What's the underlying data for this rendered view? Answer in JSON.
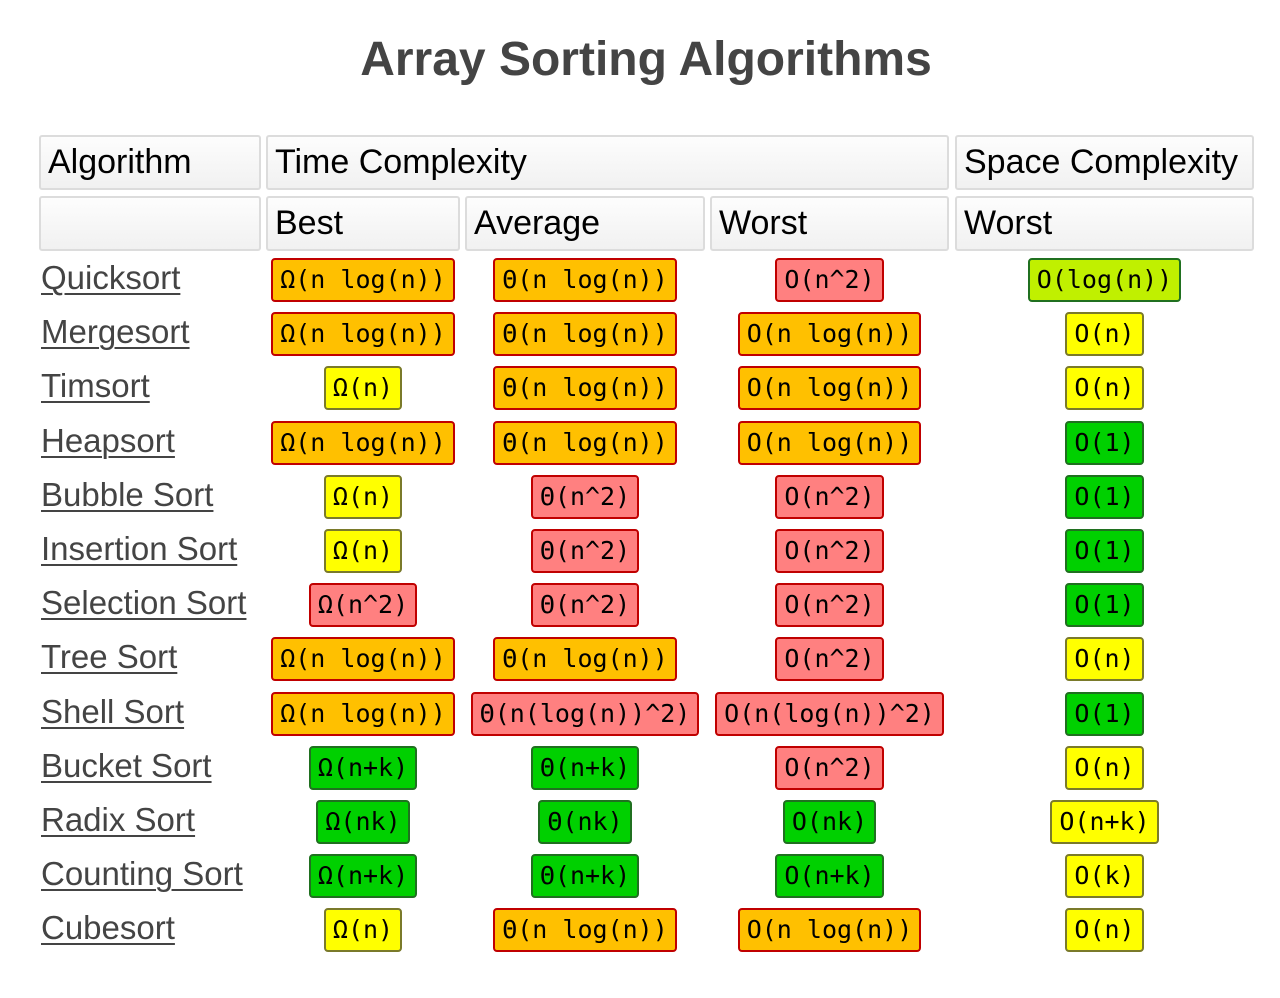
{
  "title": "Array Sorting Algorithms",
  "headers": {
    "algorithm": "Algorithm",
    "time_complexity": "Time Complexity",
    "space_complexity": "Space Complexity",
    "best": "Best",
    "average": "Average",
    "worst": "Worst",
    "space_worst": "Worst"
  },
  "colors": {
    "orange": "#ffc000",
    "red": "#ff8080",
    "yellow": "#ffff00",
    "green": "#00d000",
    "lime": "#c0f000"
  },
  "rows": [
    {
      "name": "Quicksort",
      "best": {
        "v": "Ω(n log(n))",
        "c": "orange"
      },
      "avg": {
        "v": "Θ(n log(n))",
        "c": "orange"
      },
      "worst": {
        "v": "O(n^2)",
        "c": "red"
      },
      "space": {
        "v": "O(log(n))",
        "c": "lime"
      }
    },
    {
      "name": "Mergesort",
      "best": {
        "v": "Ω(n log(n))",
        "c": "orange"
      },
      "avg": {
        "v": "Θ(n log(n))",
        "c": "orange"
      },
      "worst": {
        "v": "O(n log(n))",
        "c": "orange"
      },
      "space": {
        "v": "O(n)",
        "c": "yellow"
      }
    },
    {
      "name": "Timsort",
      "best": {
        "v": "Ω(n)",
        "c": "yellow"
      },
      "avg": {
        "v": "Θ(n log(n))",
        "c": "orange"
      },
      "worst": {
        "v": "O(n log(n))",
        "c": "orange"
      },
      "space": {
        "v": "O(n)",
        "c": "yellow"
      }
    },
    {
      "name": "Heapsort",
      "best": {
        "v": "Ω(n log(n))",
        "c": "orange"
      },
      "avg": {
        "v": "Θ(n log(n))",
        "c": "orange"
      },
      "worst": {
        "v": "O(n log(n))",
        "c": "orange"
      },
      "space": {
        "v": "O(1)",
        "c": "green"
      }
    },
    {
      "name": "Bubble Sort",
      "best": {
        "v": "Ω(n)",
        "c": "yellow"
      },
      "avg": {
        "v": "Θ(n^2)",
        "c": "red"
      },
      "worst": {
        "v": "O(n^2)",
        "c": "red"
      },
      "space": {
        "v": "O(1)",
        "c": "green"
      }
    },
    {
      "name": "Insertion Sort",
      "best": {
        "v": "Ω(n)",
        "c": "yellow"
      },
      "avg": {
        "v": "Θ(n^2)",
        "c": "red"
      },
      "worst": {
        "v": "O(n^2)",
        "c": "red"
      },
      "space": {
        "v": "O(1)",
        "c": "green"
      }
    },
    {
      "name": "Selection Sort",
      "best": {
        "v": "Ω(n^2)",
        "c": "red"
      },
      "avg": {
        "v": "Θ(n^2)",
        "c": "red"
      },
      "worst": {
        "v": "O(n^2)",
        "c": "red"
      },
      "space": {
        "v": "O(1)",
        "c": "green"
      }
    },
    {
      "name": "Tree Sort",
      "best": {
        "v": "Ω(n log(n))",
        "c": "orange"
      },
      "avg": {
        "v": "Θ(n log(n))",
        "c": "orange"
      },
      "worst": {
        "v": "O(n^2)",
        "c": "red"
      },
      "space": {
        "v": "O(n)",
        "c": "yellow"
      }
    },
    {
      "name": "Shell Sort",
      "best": {
        "v": "Ω(n log(n))",
        "c": "orange"
      },
      "avg": {
        "v": "Θ(n(log(n))^2)",
        "c": "red"
      },
      "worst": {
        "v": "O(n(log(n))^2)",
        "c": "red"
      },
      "space": {
        "v": "O(1)",
        "c": "green"
      }
    },
    {
      "name": "Bucket Sort",
      "best": {
        "v": "Ω(n+k)",
        "c": "green"
      },
      "avg": {
        "v": "Θ(n+k)",
        "c": "green"
      },
      "worst": {
        "v": "O(n^2)",
        "c": "red"
      },
      "space": {
        "v": "O(n)",
        "c": "yellow"
      }
    },
    {
      "name": "Radix Sort",
      "best": {
        "v": "Ω(nk)",
        "c": "green"
      },
      "avg": {
        "v": "Θ(nk)",
        "c": "green"
      },
      "worst": {
        "v": "O(nk)",
        "c": "green"
      },
      "space": {
        "v": "O(n+k)",
        "c": "yellow"
      }
    },
    {
      "name": "Counting Sort",
      "best": {
        "v": "Ω(n+k)",
        "c": "green"
      },
      "avg": {
        "v": "Θ(n+k)",
        "c": "green"
      },
      "worst": {
        "v": "O(n+k)",
        "c": "green"
      },
      "space": {
        "v": "O(k)",
        "c": "yellow"
      }
    },
    {
      "name": "Cubesort",
      "best": {
        "v": "Ω(n)",
        "c": "yellow"
      },
      "avg": {
        "v": "Θ(n log(n))",
        "c": "orange"
      },
      "worst": {
        "v": "O(n log(n))",
        "c": "orange"
      },
      "space": {
        "v": "O(n)",
        "c": "yellow"
      }
    }
  ]
}
